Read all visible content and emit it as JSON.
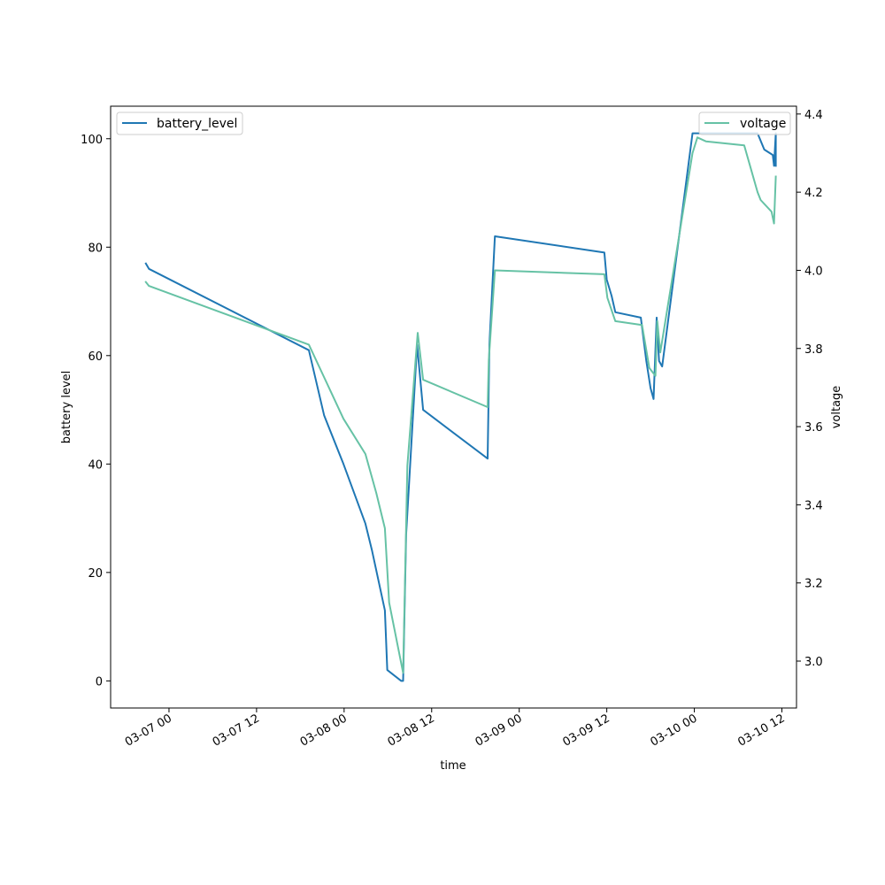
{
  "chart_data": {
    "type": "line",
    "title": "",
    "xlabel": "time",
    "ylabel_left": "battery level",
    "ylabel_right": "voltage",
    "x_range": [
      "2023-03-06 16:00",
      "2023-03-10 14:00"
    ],
    "ylim_left": [
      -5,
      106
    ],
    "ylim_right": [
      2.88,
      4.42
    ],
    "x_ticks": [
      {
        "t": "2023-03-07 00:00",
        "label": "03-07 00"
      },
      {
        "t": "2023-03-07 12:00",
        "label": "03-07 12"
      },
      {
        "t": "2023-03-08 00:00",
        "label": "03-08 00"
      },
      {
        "t": "2023-03-08 12:00",
        "label": "03-08 12"
      },
      {
        "t": "2023-03-09 00:00",
        "label": "03-09 00"
      },
      {
        "t": "2023-03-09 12:00",
        "label": "03-09 12"
      },
      {
        "t": "2023-03-10 00:00",
        "label": "03-10 00"
      },
      {
        "t": "2023-03-10 12:00",
        "label": "03-10 12"
      }
    ],
    "y_ticks_left": [
      "0",
      "20",
      "40",
      "60",
      "80",
      "100"
    ],
    "y_ticks_right": [
      "3.0",
      "3.2",
      "3.4",
      "3.6",
      "3.8",
      "4.0",
      "4.2",
      "4.4"
    ],
    "grid": false,
    "series": [
      {
        "name": "battery_level",
        "axis": "left",
        "color": "#1f77b4",
        "legend_position": "upper left",
        "points": [
          [
            "2023-03-06 20:50",
            77
          ],
          [
            "2023-03-06 21:15",
            76
          ],
          [
            "2023-03-07 19:10",
            61
          ],
          [
            "2023-03-07 21:15",
            49
          ],
          [
            "2023-03-07 21:50",
            47
          ],
          [
            "2023-03-07 23:55",
            40
          ],
          [
            "2023-03-08 02:55",
            29
          ],
          [
            "2023-03-08 03:50",
            24
          ],
          [
            "2023-03-08 05:35",
            13
          ],
          [
            "2023-03-08 05:55",
            2
          ],
          [
            "2023-03-08 07:50",
            0
          ],
          [
            "2023-03-08 08:05",
            0
          ],
          [
            "2023-03-08 08:30",
            27
          ],
          [
            "2023-03-08 10:00",
            62
          ],
          [
            "2023-03-08 10:50",
            50
          ],
          [
            "2023-03-08 19:40",
            41
          ],
          [
            "2023-03-08 19:55",
            62
          ],
          [
            "2023-03-08 20:40",
            82
          ],
          [
            "2023-03-09 11:40",
            79
          ],
          [
            "2023-03-09 12:00",
            74
          ],
          [
            "2023-03-09 12:40",
            71
          ],
          [
            "2023-03-09 13:10",
            68
          ],
          [
            "2023-03-09 16:40",
            67
          ],
          [
            "2023-03-09 17:25",
            59
          ],
          [
            "2023-03-09 18:00",
            54
          ],
          [
            "2023-03-09 18:25",
            52
          ],
          [
            "2023-03-09 18:50",
            67
          ],
          [
            "2023-03-09 19:10",
            59
          ],
          [
            "2023-03-09 19:35",
            58
          ],
          [
            "2023-03-09 23:45",
            101
          ],
          [
            "2023-03-10 08:40",
            101
          ],
          [
            "2023-03-10 09:35",
            98
          ],
          [
            "2023-03-10 10:45",
            97
          ],
          [
            "2023-03-10 10:55",
            95
          ],
          [
            "2023-03-10 11:10",
            101
          ],
          [
            "2023-03-10 11:10",
            95
          ]
        ]
      },
      {
        "name": "voltage",
        "axis": "right",
        "color": "#66c2a5",
        "legend_position": "upper right",
        "points": [
          [
            "2023-03-06 20:50",
            3.97
          ],
          [
            "2023-03-06 21:15",
            3.96
          ],
          [
            "2023-03-07 19:10",
            3.81
          ],
          [
            "2023-03-07 21:40",
            3.71
          ],
          [
            "2023-03-07 22:10",
            3.69
          ],
          [
            "2023-03-07 23:55",
            3.62
          ],
          [
            "2023-03-08 02:55",
            3.53
          ],
          [
            "2023-03-08 04:25",
            3.43
          ],
          [
            "2023-03-08 05:35",
            3.34
          ],
          [
            "2023-03-08 06:10",
            3.15
          ],
          [
            "2023-03-08 08:05",
            2.97
          ],
          [
            "2023-03-08 08:40",
            3.5
          ],
          [
            "2023-03-08 10:05",
            3.84
          ],
          [
            "2023-03-08 10:50",
            3.72
          ],
          [
            "2023-03-08 19:40",
            3.65
          ],
          [
            "2023-03-08 19:50",
            3.77
          ],
          [
            "2023-03-08 20:40",
            4.0
          ],
          [
            "2023-03-09 11:40",
            3.99
          ],
          [
            "2023-03-09 12:05",
            3.93
          ],
          [
            "2023-03-09 13:10",
            3.87
          ],
          [
            "2023-03-09 16:50",
            3.86
          ],
          [
            "2023-03-09 17:50",
            3.75
          ],
          [
            "2023-03-09 18:40",
            3.73
          ],
          [
            "2023-03-09 18:55",
            3.87
          ],
          [
            "2023-03-09 19:20",
            3.79
          ],
          [
            "2023-03-09 23:45",
            4.3
          ],
          [
            "2023-03-10 00:25",
            4.34
          ],
          [
            "2023-03-10 01:35",
            4.33
          ],
          [
            "2023-03-10 06:50",
            4.32
          ],
          [
            "2023-03-10 08:40",
            4.2
          ],
          [
            "2023-03-10 09:05",
            4.18
          ],
          [
            "2023-03-10 10:35",
            4.15
          ],
          [
            "2023-03-10 10:55",
            4.12
          ],
          [
            "2023-03-10 11:10",
            4.24
          ]
        ]
      }
    ]
  }
}
